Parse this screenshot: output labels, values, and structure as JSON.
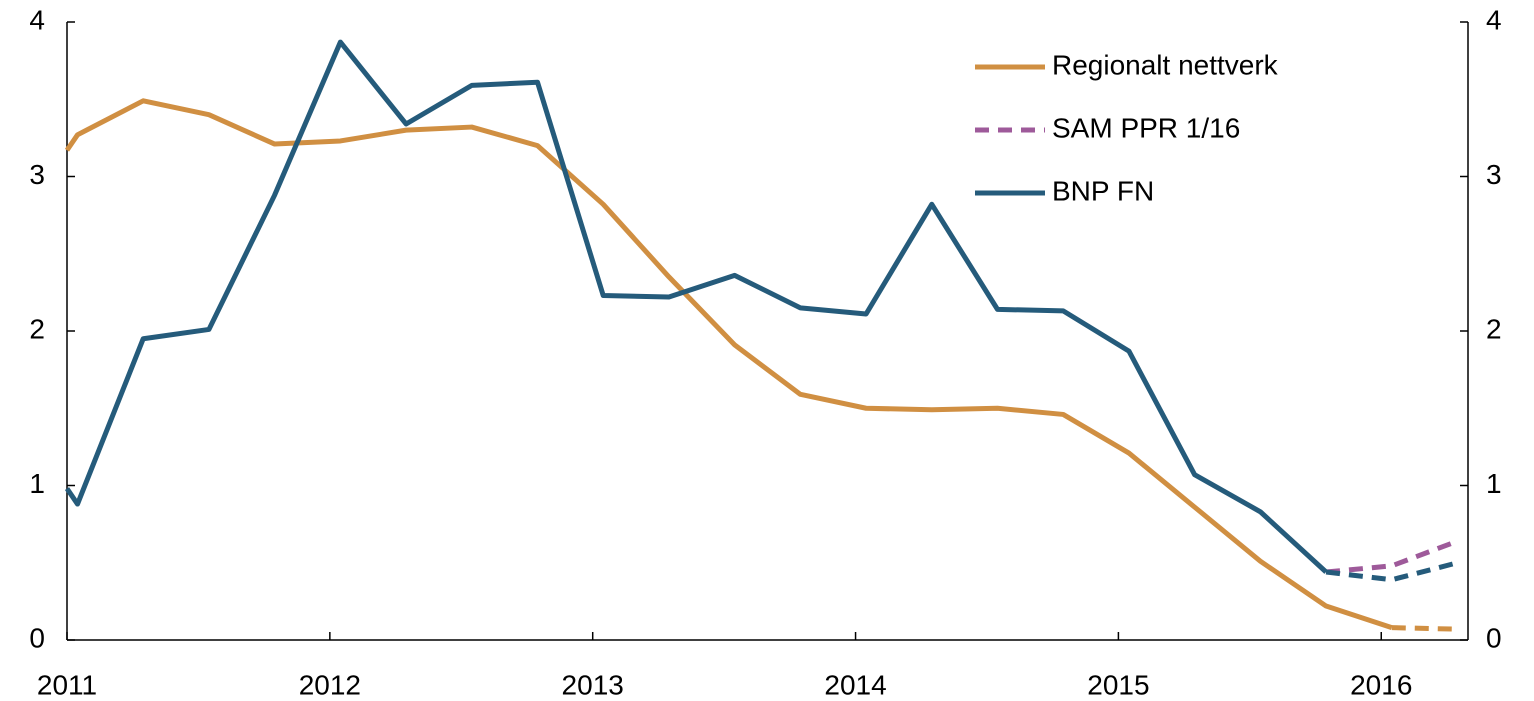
{
  "chart_data": {
    "type": "line",
    "x": [
      2011.0,
      2011.04,
      2011.29,
      2011.54,
      2011.79,
      2012.04,
      2012.29,
      2012.54,
      2012.79,
      2013.04,
      2013.29,
      2013.54,
      2013.79,
      2014.04,
      2014.29,
      2014.54,
      2014.79,
      2015.04,
      2015.29,
      2015.54,
      2015.79,
      2016.04,
      2016.29
    ],
    "series": [
      {
        "name": "Regionalt nettverk",
        "color": "#d08f42",
        "dash_from": 21,
        "values": [
          3.17,
          3.27,
          3.49,
          3.4,
          3.21,
          3.23,
          3.3,
          3.32,
          3.2,
          2.82,
          2.35,
          1.91,
          1.59,
          1.5,
          1.49,
          1.5,
          1.46,
          1.21,
          0.86,
          0.51,
          0.22,
          0.08,
          0.07
        ]
      },
      {
        "name": "SAM PPR 1/16",
        "color": "#9e5a9a",
        "dash_from": 20,
        "values": [
          null,
          null,
          null,
          null,
          null,
          null,
          null,
          null,
          null,
          null,
          null,
          null,
          null,
          null,
          null,
          null,
          null,
          null,
          null,
          null,
          0.44,
          0.48,
          0.64
        ]
      },
      {
        "name": "BNP FN",
        "color": "#255b7b",
        "dash_from": 20,
        "values": [
          0.98,
          0.88,
          1.95,
          2.01,
          2.88,
          3.87,
          3.34,
          3.59,
          3.61,
          2.23,
          2.22,
          2.36,
          2.15,
          2.11,
          2.82,
          2.14,
          2.13,
          1.87,
          1.07,
          0.83,
          0.44,
          0.39,
          0.5
        ]
      }
    ],
    "xlim": [
      2011,
      2016.33
    ],
    "xticks": [
      2011,
      2012,
      2013,
      2014,
      2015,
      2016
    ],
    "ylim": [
      0,
      4
    ],
    "yticks": [
      0,
      1,
      2,
      3,
      4
    ],
    "y2lim": [
      0,
      4
    ],
    "y2ticks": [
      0,
      1,
      2,
      3,
      4
    ],
    "legend": "top-right"
  }
}
